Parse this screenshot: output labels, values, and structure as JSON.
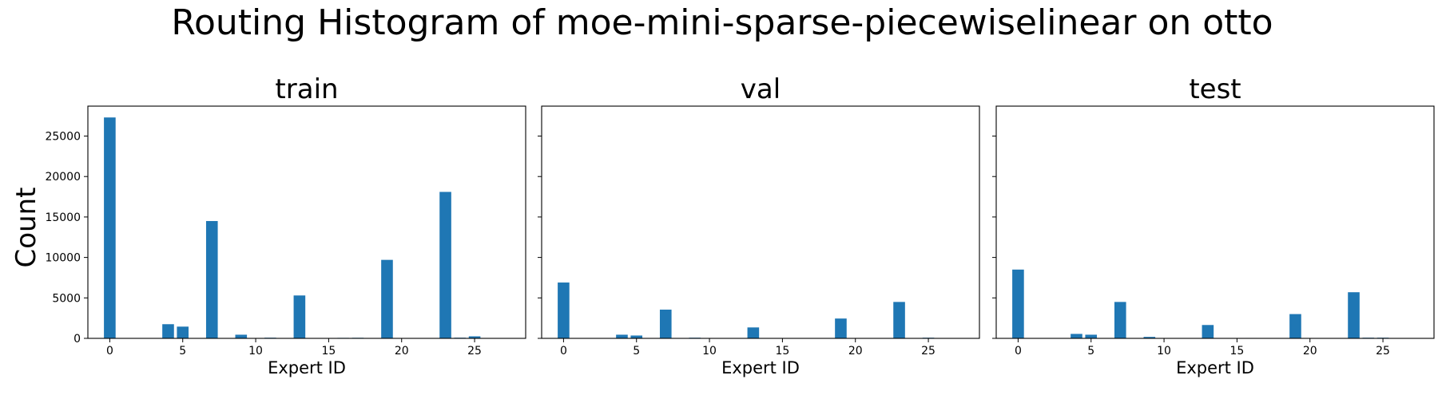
{
  "figure": {
    "title": "Routing Histogram of moe-mini-sparse-piecewiselinear on otto",
    "ylabel": "Count"
  },
  "colors": {
    "bar": "#1f77b4"
  },
  "chart_data": [
    {
      "type": "bar",
      "title": "train",
      "xlabel": "Expert ID",
      "ylabel": "Count",
      "xlim": [
        -1.5,
        28.5
      ],
      "ylim": [
        0,
        28700
      ],
      "xticks": [
        0,
        5,
        10,
        15,
        20,
        25
      ],
      "yticks": [
        0,
        5000,
        10000,
        15000,
        20000,
        25000
      ],
      "x": [
        0,
        4,
        5,
        7,
        9,
        11,
        13,
        16,
        17,
        19,
        23,
        24,
        25
      ],
      "values": [
        27300,
        1750,
        1450,
        14500,
        450,
        80,
        5300,
        60,
        70,
        9700,
        18100,
        80,
        250
      ]
    },
    {
      "type": "bar",
      "title": "val",
      "xlabel": "Expert ID",
      "xlim": [
        -1.5,
        28.5
      ],
      "ylim": [
        0,
        28700
      ],
      "xticks": [
        0,
        5,
        10,
        15,
        20,
        25
      ],
      "yticks": [
        0,
        5000,
        10000,
        15000,
        20000,
        25000
      ],
      "x": [
        0,
        4,
        5,
        7,
        9,
        13,
        19,
        23,
        25
      ],
      "values": [
        6900,
        450,
        350,
        3550,
        80,
        1350,
        2450,
        4500,
        80
      ]
    },
    {
      "type": "bar",
      "title": "test",
      "xlabel": "Expert ID",
      "xlim": [
        -1.5,
        28.5
      ],
      "ylim": [
        0,
        28700
      ],
      "xticks": [
        0,
        5,
        10,
        15,
        20,
        25
      ],
      "yticks": [
        0,
        5000,
        10000,
        15000,
        20000,
        25000
      ],
      "x": [
        0,
        4,
        5,
        7,
        9,
        13,
        16,
        19,
        23,
        24,
        25
      ],
      "values": [
        8500,
        550,
        450,
        4500,
        180,
        1650,
        50,
        3000,
        5700,
        80,
        80
      ]
    }
  ]
}
